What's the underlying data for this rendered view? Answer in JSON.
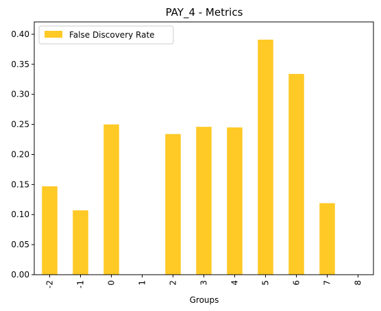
{
  "chart_data": {
    "type": "bar",
    "title": "PAY_4 - Metrics",
    "xlabel": "Groups",
    "ylabel": "",
    "categories": [
      "-2",
      "-1",
      "0",
      "1",
      "2",
      "3",
      "4",
      "5",
      "6",
      "7",
      "8"
    ],
    "series": [
      {
        "name": "False Discovery Rate",
        "color": "#FFC926",
        "values": [
          0.147,
          0.107,
          0.25,
          0.0,
          0.234,
          0.246,
          0.245,
          0.391,
          0.334,
          0.119,
          0.0
        ]
      }
    ],
    "ylim": [
      0,
      0.4205
    ],
    "yticks": [
      0.0,
      0.05,
      0.1,
      0.15,
      0.2,
      0.25,
      0.3,
      0.35,
      0.4
    ],
    "ytick_labels": [
      "0.00",
      "0.05",
      "0.10",
      "0.15",
      "0.20",
      "0.25",
      "0.30",
      "0.35",
      "0.40"
    ],
    "grid": false,
    "legend_position": "top-left"
  }
}
